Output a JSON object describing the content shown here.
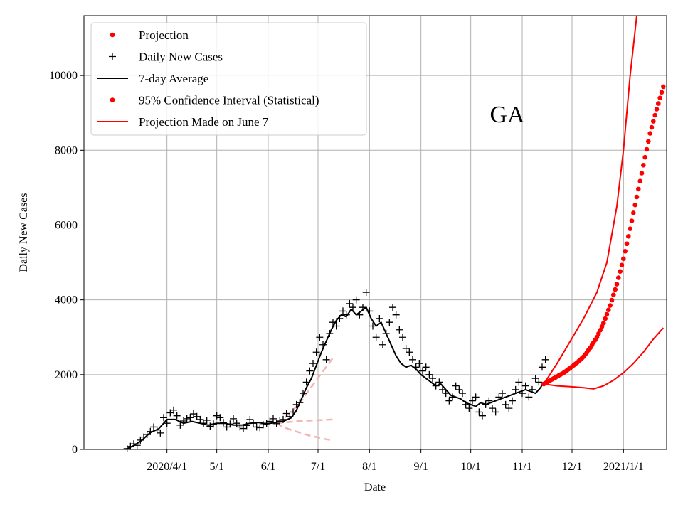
{
  "chart_data": {
    "type": "line",
    "title": "",
    "annotation": "GA",
    "xlabel": "Date",
    "ylabel": "Daily New Cases",
    "ylim": [
      0,
      11600
    ],
    "xlim_days": [
      -25,
      326
    ],
    "x_origin": "2020/3/7",
    "grid": true,
    "legend_position": "top-left",
    "yticks": [
      {
        "value": 0,
        "label": "0"
      },
      {
        "value": 2000,
        "label": "2000"
      },
      {
        "value": 4000,
        "label": "4000"
      },
      {
        "value": 6000,
        "label": "6000"
      },
      {
        "value": 8000,
        "label": "8000"
      },
      {
        "value": 10000,
        "label": "10000"
      }
    ],
    "xticks": [
      {
        "day": 25,
        "label": "2020/4/1"
      },
      {
        "day": 55,
        "label": "5/1"
      },
      {
        "day": 86,
        "label": "6/1"
      },
      {
        "day": 116,
        "label": "7/1"
      },
      {
        "day": 147,
        "label": "8/1"
      },
      {
        "day": 178,
        "label": "9/1"
      },
      {
        "day": 208,
        "label": "10/1"
      },
      {
        "day": 239,
        "label": "11/1"
      },
      {
        "day": 269,
        "label": "12/1"
      },
      {
        "day": 300,
        "label": "2021/1/1"
      }
    ],
    "legend": [
      {
        "label": "Projection",
        "marker": "dot",
        "color": "#ff0000"
      },
      {
        "label": "Daily New Cases",
        "marker": "plus",
        "color": "#000000"
      },
      {
        "label": "7-day Average",
        "marker": "line",
        "color": "#000000"
      },
      {
        "label": "95% Confidence Interval (Statistical)",
        "marker": "dot",
        "color": "#ff0000"
      },
      {
        "label": "Projection Made on June 7",
        "marker": "line",
        "color": "#ff0000"
      }
    ],
    "colors": {
      "daily": "#000000",
      "average": "#000000",
      "projection": "#ff0000",
      "june7": "#f4b4b4",
      "grid": "#b0b0b0"
    },
    "series": [
      {
        "name": "7-day Average",
        "style": "line",
        "x": [
          0,
          5,
          10,
          15,
          20,
          25,
          30,
          35,
          40,
          45,
          50,
          55,
          60,
          65,
          70,
          75,
          80,
          85,
          90,
          95,
          100,
          103,
          106,
          109,
          112,
          115,
          118,
          121,
          124,
          127,
          130,
          133,
          136,
          139,
          142,
          145,
          148,
          151,
          154,
          157,
          160,
          163,
          166,
          169,
          172,
          175,
          178,
          181,
          184,
          187,
          190,
          193,
          196,
          199,
          202,
          205,
          208,
          211,
          214,
          217,
          220,
          223,
          226,
          229,
          232,
          235,
          238,
          241,
          244,
          247,
          250,
          252
        ],
        "y": [
          0,
          100,
          250,
          450,
          550,
          800,
          800,
          700,
          750,
          700,
          650,
          700,
          700,
          650,
          650,
          700,
          720,
          680,
          720,
          750,
          850,
          1050,
          1350,
          1650,
          1900,
          2250,
          2600,
          2900,
          3200,
          3450,
          3600,
          3550,
          3750,
          3600,
          3700,
          3800,
          3500,
          3300,
          3400,
          3100,
          2800,
          2500,
          2300,
          2200,
          2250,
          2150,
          2000,
          1900,
          1800,
          1700,
          1750,
          1600,
          1450,
          1400,
          1350,
          1250,
          1200,
          1150,
          1250,
          1200,
          1250,
          1300,
          1350,
          1400,
          1450,
          1500,
          1550,
          1600,
          1550,
          1500,
          1650,
          1800
        ]
      },
      {
        "name": "Daily New Cases",
        "style": "plus",
        "x": [
          1,
          3,
          5,
          7,
          9,
          11,
          13,
          15,
          17,
          19,
          21,
          23,
          25,
          27,
          29,
          31,
          33,
          35,
          37,
          39,
          41,
          43,
          45,
          47,
          49,
          51,
          53,
          55,
          57,
          59,
          61,
          63,
          65,
          67,
          69,
          71,
          73,
          75,
          77,
          79,
          81,
          83,
          85,
          87,
          89,
          91,
          93,
          95,
          97,
          99,
          101,
          103,
          105,
          107,
          109,
          111,
          113,
          115,
          117,
          119,
          121,
          123,
          125,
          127,
          129,
          131,
          133,
          135,
          137,
          139,
          141,
          143,
          145,
          147,
          149,
          151,
          153,
          155,
          157,
          159,
          161,
          163,
          165,
          167,
          169,
          171,
          173,
          175,
          177,
          179,
          181,
          183,
          185,
          187,
          189,
          191,
          193,
          195,
          197,
          199,
          201,
          203,
          205,
          207,
          209,
          211,
          213,
          215,
          217,
          219,
          221,
          223,
          225,
          227,
          229,
          231,
          233,
          235,
          237,
          239,
          241,
          243,
          245,
          247,
          249,
          251,
          253
        ],
        "y": [
          20,
          80,
          150,
          110,
          250,
          330,
          400,
          480,
          600,
          520,
          440,
          850,
          700,
          980,
          1050,
          900,
          650,
          760,
          820,
          850,
          950,
          880,
          800,
          700,
          780,
          620,
          680,
          900,
          850,
          720,
          600,
          680,
          820,
          700,
          600,
          560,
          640,
          800,
          700,
          600,
          580,
          660,
          700,
          750,
          820,
          690,
          760,
          800,
          960,
          880,
          1000,
          1200,
          1250,
          1500,
          1800,
          2100,
          2300,
          2600,
          3000,
          2800,
          2400,
          3100,
          3400,
          3300,
          3500,
          3700,
          3600,
          3900,
          3800,
          4000,
          3600,
          3800,
          4200,
          3700,
          3300,
          3000,
          3500,
          2800,
          3100,
          3400,
          3800,
          3600,
          3200,
          3000,
          2700,
          2600,
          2400,
          2200,
          2300,
          2100,
          2200,
          2000,
          1900,
          1700,
          1800,
          1600,
          1500,
          1300,
          1400,
          1700,
          1600,
          1500,
          1200,
          1100,
          1300,
          1400,
          1000,
          900,
          1200,
          1300,
          1100,
          1000,
          1400,
          1500,
          1200,
          1100,
          1300,
          1600,
          1800,
          1500,
          1700,
          1400,
          1600,
          1900,
          1800,
          2200,
          2400
        ]
      },
      {
        "name": "Projection",
        "style": "dot",
        "x": [
          252,
          256,
          260,
          264,
          268,
          272,
          276,
          280,
          284,
          288,
          292,
          296,
          300,
          304,
          308,
          312,
          316,
          320,
          324
        ],
        "y": [
          1750,
          1850,
          1950,
          2050,
          2180,
          2320,
          2480,
          2720,
          3000,
          3380,
          3850,
          4420,
          5100,
          5900,
          6750,
          7600,
          8450,
          9100,
          9700
        ]
      },
      {
        "name": "95% Confidence Interval Upper",
        "style": "line",
        "x": [
          252,
          260,
          268,
          276,
          284,
          290,
          296,
          300,
          304,
          308
        ],
        "y": [
          1750,
          2300,
          2900,
          3500,
          4200,
          5000,
          6500,
          8000,
          10000,
          11600
        ]
      },
      {
        "name": "95% Confidence Interval Lower",
        "style": "line",
        "x": [
          252,
          260,
          268,
          276,
          282,
          288,
          294,
          300,
          306,
          312,
          318,
          324
        ],
        "y": [
          1750,
          1700,
          1680,
          1650,
          1620,
          1700,
          1850,
          2050,
          2300,
          2600,
          2950,
          3250
        ]
      },
      {
        "name": "Projection Made on June 7 (central)",
        "style": "dashed",
        "x": [
          91,
          95,
          100,
          105,
          110,
          115,
          120,
          125
        ],
        "y": [
          700,
          820,
          1000,
          1250,
          1550,
          1850,
          2150,
          2450
        ]
      },
      {
        "name": "Projection Made on June 7 (upper)",
        "style": "dashed",
        "x": [
          91,
          95,
          100,
          105,
          110,
          115,
          120,
          125
        ],
        "y": [
          700,
          720,
          740,
          760,
          770,
          780,
          790,
          800
        ]
      },
      {
        "name": "Projection Made on June 7 (lower)",
        "style": "dashed",
        "x": [
          91,
          95,
          100,
          105,
          110,
          115,
          120,
          125
        ],
        "y": [
          700,
          600,
          520,
          450,
          380,
          330,
          280,
          240
        ]
      }
    ]
  }
}
